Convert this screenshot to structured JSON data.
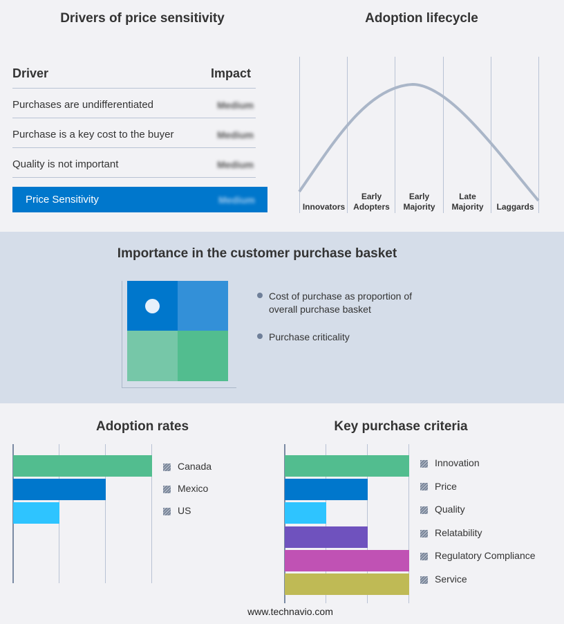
{
  "drivers": {
    "title": "Drivers of price sensitivity",
    "col_driver": "Driver",
    "col_impact": "Impact",
    "rows": [
      {
        "driver": "Purchases are undifferentiated",
        "impact": "Medium"
      },
      {
        "driver": "Purchase is a key cost to the buyer",
        "impact": "Medium"
      },
      {
        "driver": "Quality is not important",
        "impact": "Medium"
      }
    ],
    "summary": {
      "label": "Price Sensitivity",
      "impact": "Medium"
    },
    "accent": "#0077cc"
  },
  "lifecycle": {
    "title": "Adoption lifecycle",
    "stages": [
      "Innovators",
      "Early Adopters",
      "Early Majority",
      "Late Majority",
      "Laggards"
    ],
    "curve_color": "#aab6c8"
  },
  "basket": {
    "title": "Importance in the customer purchase basket",
    "legend": [
      "Cost of purchase as proportion of overall purchase basket",
      "Purchase criticality"
    ],
    "quadrant_colors": [
      "#0077cc",
      "#3390d8",
      "#76c7a8",
      "#52bd8f"
    ]
  },
  "chart_data": [
    {
      "type": "bar",
      "title": "Adoption rates",
      "categories": [
        "Canada",
        "Mexico",
        "US"
      ],
      "values": [
        3,
        2,
        1
      ],
      "xlim": [
        0,
        3
      ],
      "grid": true,
      "legend": "right",
      "colors": [
        "#52bd8f",
        "#0077cc",
        "#2ec4ff"
      ]
    },
    {
      "type": "bar",
      "title": "Key purchase criteria",
      "categories": [
        "Innovation",
        "Price",
        "Quality",
        "Relatability",
        "Regulatory Compliance",
        "Service"
      ],
      "values": [
        3,
        2,
        1,
        2,
        3,
        3
      ],
      "xlim": [
        0,
        3
      ],
      "grid": true,
      "legend": "right",
      "colors": [
        "#52bd8f",
        "#0077cc",
        "#2ec4ff",
        "#6f52be",
        "#c052b4",
        "#bfba55"
      ]
    }
  ],
  "footer": "www.technavio.com"
}
